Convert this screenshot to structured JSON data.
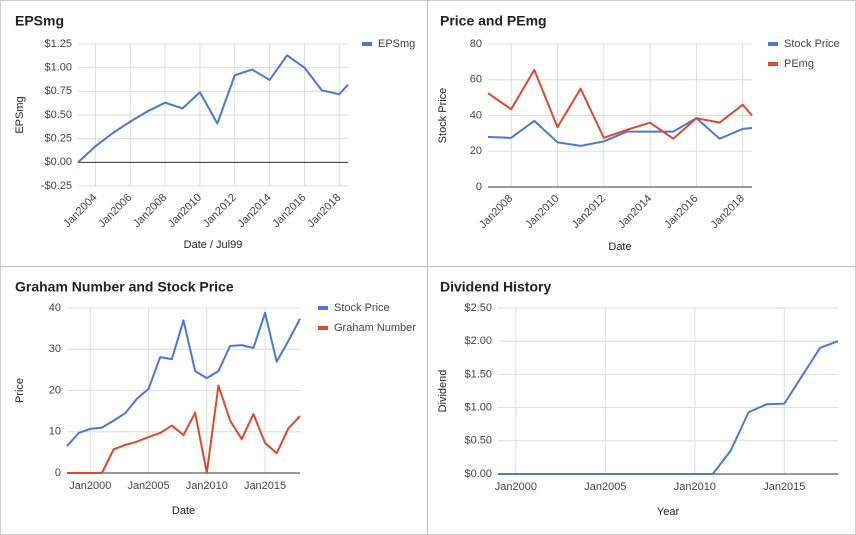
{
  "chart_data": [
    {
      "type": "line",
      "title": "EPSmg",
      "x_label": "Date / Jul99",
      "y_label": "EPSmg",
      "x": [
        2003,
        2004,
        2005,
        2006,
        2007,
        2008,
        2009,
        2010,
        2011,
        2012,
        2013,
        2014,
        2015,
        2016,
        2017,
        2018,
        2018.5
      ],
      "xlim": [
        2003,
        2018.5
      ],
      "xticks": [
        {
          "value": 2004,
          "label": "Jan2004"
        },
        {
          "value": 2006,
          "label": "Jan2006"
        },
        {
          "value": 2008,
          "label": "Jan2008"
        },
        {
          "value": 2010,
          "label": "Jan2010"
        },
        {
          "value": 2012,
          "label": "Jan2012"
        },
        {
          "value": 2014,
          "label": "Jan2014"
        },
        {
          "value": 2016,
          "label": "Jan2016"
        },
        {
          "value": 2018,
          "label": "Jan2018"
        }
      ],
      "ylim": [
        -0.25,
        1.25
      ],
      "yticks": [
        {
          "value": -0.25,
          "label": "-$0.25"
        },
        {
          "value": 0,
          "label": "$0.00"
        },
        {
          "value": 0.25,
          "label": "$0.25"
        },
        {
          "value": 0.5,
          "label": "$0.50"
        },
        {
          "value": 0.75,
          "label": "$0.75"
        },
        {
          "value": 1,
          "label": "$1.00"
        },
        {
          "value": 1.25,
          "label": "$1.25"
        }
      ],
      "series": [
        {
          "name": "EPSmg",
          "color": "#4a78d4",
          "values": [
            0,
            0.17,
            0.31,
            0.43,
            0.54,
            0.63,
            0.57,
            0.74,
            0.41,
            0.92,
            0.98,
            0.87,
            1.13,
            1.0,
            0.76,
            0.72,
            0.82
          ]
        }
      ],
      "grid": true,
      "legend": "right"
    },
    {
      "type": "line",
      "title": "Price and PEmg",
      "x_label": "Date",
      "y_label": "Stock Price",
      "x": [
        2007,
        2008,
        2009,
        2010,
        2011,
        2012,
        2013,
        2014,
        2015,
        2016,
        2017,
        2018,
        2018.4
      ],
      "xlim": [
        2007,
        2018.4
      ],
      "xticks": [
        {
          "value": 2008,
          "label": "Jan2008"
        },
        {
          "value": 2010,
          "label": "Jan2010"
        },
        {
          "value": 2012,
          "label": "Jan2012"
        },
        {
          "value": 2014,
          "label": "Jan2014"
        },
        {
          "value": 2016,
          "label": "Jan2016"
        },
        {
          "value": 2018,
          "label": "Jan2018"
        }
      ],
      "ylim": [
        0,
        80
      ],
      "yticks": [
        0,
        20,
        40,
        60,
        80
      ],
      "series": [
        {
          "name": "Stock Price",
          "color": "#4a78d4",
          "values": [
            28,
            27.5,
            37,
            25,
            23,
            25.5,
            31,
            31,
            31,
            38.5,
            27,
            32.5,
            33
          ]
        },
        {
          "name": "PEmg",
          "color": "#dc4a2e",
          "values": [
            52.5,
            43.5,
            65.5,
            33.5,
            55,
            27.5,
            32,
            36,
            27,
            38.5,
            36,
            46,
            40
          ]
        }
      ],
      "grid": true,
      "legend": "right"
    },
    {
      "type": "line",
      "title": "Graham Number and Stock Price",
      "x_label": "Date",
      "y_label": "Price",
      "x": [
        1998,
        1999,
        2000,
        2001,
        2002,
        2003,
        2004,
        2005,
        2006,
        2007,
        2008,
        2009,
        2010,
        2011,
        2012,
        2013,
        2014,
        2015,
        2016,
        2017,
        2018
      ],
      "xlim": [
        1998,
        2018
      ],
      "xticks": [
        {
          "value": 2000,
          "label": "Jan2000"
        },
        {
          "value": 2005,
          "label": "Jan2005"
        },
        {
          "value": 2010,
          "label": "Jan2010"
        },
        {
          "value": 2015,
          "label": "Jan2015"
        }
      ],
      "ylim": [
        0,
        40
      ],
      "yticks": [
        0,
        10,
        20,
        30,
        40
      ],
      "series": [
        {
          "name": "Stock Price",
          "color": "#4a78d4",
          "values": [
            6.5,
            9.7,
            10.7,
            11,
            12.7,
            14.5,
            18,
            20.4,
            28.1,
            27.6,
            37,
            24.7,
            23,
            24.7,
            30.8,
            31,
            30.3,
            38.8,
            27,
            32,
            37.4
          ]
        },
        {
          "name": "Graham Number",
          "color": "#dc4a2e",
          "values": [
            0,
            0,
            0,
            0,
            5.7,
            6.8,
            7.6,
            8.7,
            9.7,
            11.5,
            9.2,
            14.6,
            0,
            21.2,
            12.7,
            8.2,
            14.3,
            7.3,
            4.8,
            10.8,
            13.8
          ]
        }
      ],
      "grid": true,
      "legend": "right"
    },
    {
      "type": "line",
      "title": "Dividend History",
      "x_label": "Year",
      "y_label": "Dividend",
      "x": [
        1999,
        2000,
        2001,
        2002,
        2003,
        2004,
        2005,
        2006,
        2007,
        2008,
        2009,
        2010,
        2011,
        2012,
        2013,
        2014,
        2015,
        2016,
        2017,
        2018
      ],
      "xlim": [
        1999,
        2018
      ],
      "xticks": [
        {
          "value": 2000,
          "label": "Jan2000"
        },
        {
          "value": 2005,
          "label": "Jan2005"
        },
        {
          "value": 2010,
          "label": "Jan2010"
        },
        {
          "value": 2015,
          "label": "Jan2015"
        }
      ],
      "ylim": [
        0,
        2.5
      ],
      "yticks": [
        {
          "value": 0,
          "label": "$0.00"
        },
        {
          "value": 0.5,
          "label": "$0.50"
        },
        {
          "value": 1,
          "label": "$1.00"
        },
        {
          "value": 1.5,
          "label": "$1.50"
        },
        {
          "value": 2,
          "label": "$2.00"
        },
        {
          "value": 2.5,
          "label": "$2.50"
        }
      ],
      "values": [
        0,
        0,
        0,
        0,
        0,
        0,
        0,
        0,
        0,
        0,
        0,
        0,
        0,
        0.35,
        0.93,
        1.05,
        1.06,
        1.48,
        1.9,
        2.0
      ],
      "color": "#4a78d4",
      "grid": true
    }
  ]
}
